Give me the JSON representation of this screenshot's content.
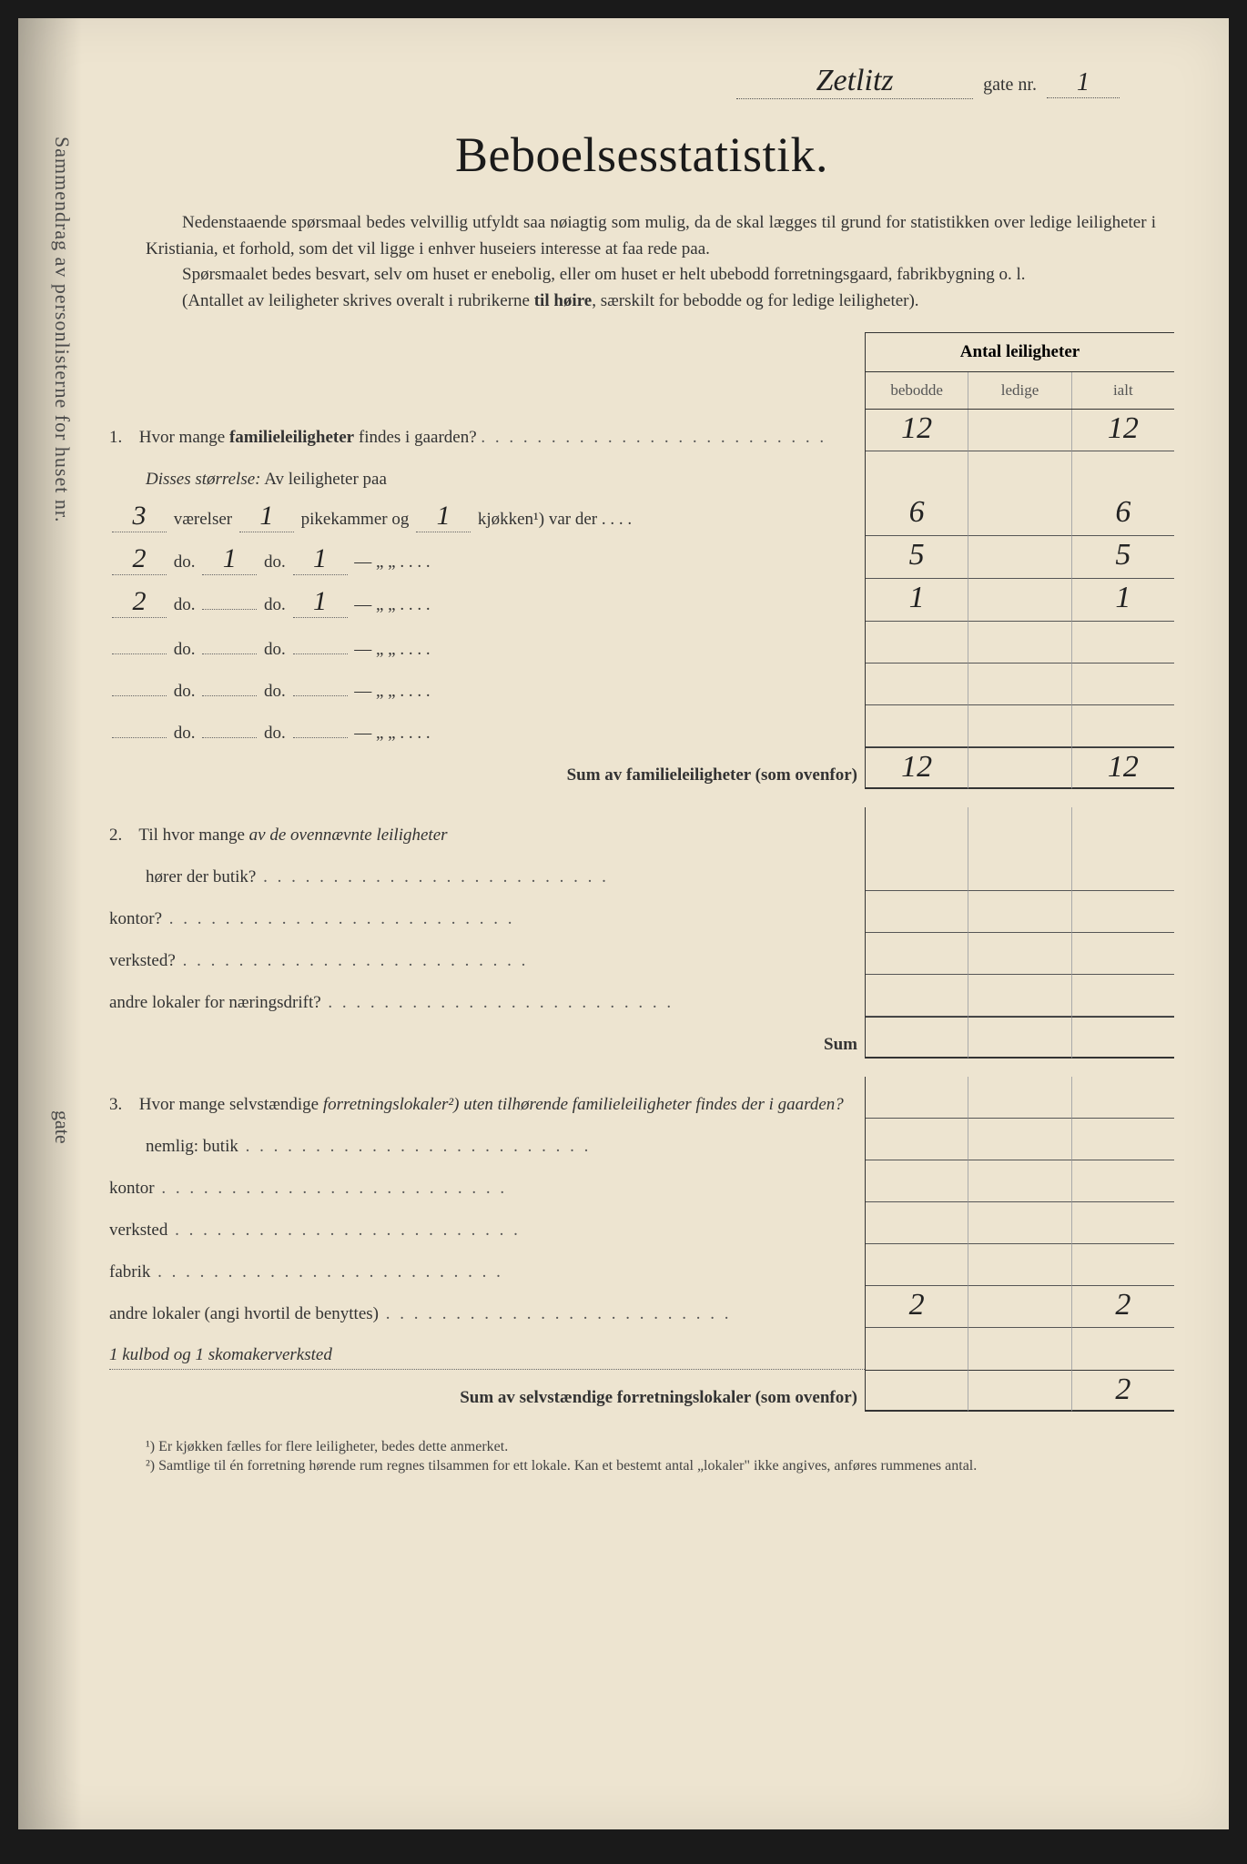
{
  "header": {
    "street_handwritten": "Zetlitz",
    "gate_label": "gate nr.",
    "number_handwritten": "1"
  },
  "title": "Beboelsesstatistik.",
  "intro": {
    "p1": "Nedenstaaende spørsmaal bedes velvillig utfyldt saa nøiagtig som mulig, da de skal lægges til grund for statistikken over ledige leiligheter i Kristiania, et forhold, som det vil ligge i enhver huseiers interesse at faa rede paa.",
    "p2": "Spørsmaalet bedes besvart, selv om huset er enebolig, eller om huset er helt ubebodd forretningsgaard, fabrikbygning o. l.",
    "p3_a": "(Antallet av leiligheter skrives overalt i rubrikerne ",
    "p3_b": "til høire",
    "p3_c": ", særskilt for bebodde og for ledige leiligheter)."
  },
  "cols": {
    "header": "Antal leiligheter",
    "c1": "bebodde",
    "c2": "ledige",
    "c3": "ialt"
  },
  "q1": {
    "label_a": "Hvor mange ",
    "label_b": "familieleiligheter",
    "label_c": " findes i gaarden?",
    "values": {
      "bebodde": "12",
      "ledige": "",
      "ialt": "12"
    },
    "disses": "Disses størrelse:",
    "av": " Av leiligheter paa",
    "rows": [
      {
        "vaer": "3",
        "vaer_lbl": "værelser",
        "pike": "1",
        "pike_lbl": "pikekammer og",
        "kjok": "1",
        "kjok_lbl": "kjøkken¹) var der",
        "bebodde": "6",
        "ledige": "",
        "ialt": "6"
      },
      {
        "vaer": "2",
        "vaer_lbl": "do.",
        "pike": "1",
        "pike_lbl": "do.",
        "kjok": "1",
        "kjok_lbl": "—        „    „",
        "bebodde": "5",
        "ledige": "",
        "ialt": "5"
      },
      {
        "vaer": "2",
        "vaer_lbl": "do.",
        "pike": "",
        "pike_lbl": "do.",
        "kjok": "1",
        "kjok_lbl": "—        „    „",
        "bebodde": "1",
        "ledige": "",
        "ialt": "1"
      },
      {
        "vaer": "",
        "vaer_lbl": "do.",
        "pike": "",
        "pike_lbl": "do.",
        "kjok": "",
        "kjok_lbl": "—        „    „",
        "bebodde": "",
        "ledige": "",
        "ialt": ""
      },
      {
        "vaer": "",
        "vaer_lbl": "do.",
        "pike": "",
        "pike_lbl": "do.",
        "kjok": "",
        "kjok_lbl": "—        „    „",
        "bebodde": "",
        "ledige": "",
        "ialt": ""
      },
      {
        "vaer": "",
        "vaer_lbl": "do.",
        "pike": "",
        "pike_lbl": "do.",
        "kjok": "",
        "kjok_lbl": "—        „    „",
        "bebodde": "",
        "ledige": "",
        "ialt": ""
      }
    ],
    "sum_label": "Sum av familieleiligheter (som ovenfor)",
    "sum": {
      "bebodde": "12",
      "ledige": "",
      "ialt": "12"
    }
  },
  "q2": {
    "label_a": "Til hvor mange ",
    "label_b": "av de ovennævnte leiligheter",
    "horer": "hører der butik?",
    "items": [
      "kontor?",
      "verksted?",
      "andre lokaler for næringsdrift?"
    ],
    "sum_label": "Sum"
  },
  "q3": {
    "label_a": "Hvor mange selvstændige ",
    "label_b": "forretningslokaler²)",
    "label_c": " uten tilhørende familie­leiligheter findes der i gaarden?",
    "nemlig": "nemlig: butik",
    "items": [
      "kontor",
      "verksted",
      "fabrik"
    ],
    "andre": "andre lokaler (angi hvortil de benyttes)",
    "andre_vals": {
      "bebodde": "2",
      "ledige": "",
      "ialt": "2"
    },
    "handwritten_line": "1 kulbod  og  1 skomakerverksted",
    "sum_label": "Sum av selvstændige forretningslokaler (som ovenfor)",
    "sum": {
      "bebodde": "",
      "ledige": "",
      "ialt": "2"
    }
  },
  "footnotes": {
    "f1": "¹) Er kjøkken fælles for flere leiligheter, bedes dette anmerket.",
    "f2": "²) Samtlige til én forretning hørende rum regnes tilsammen for ett lokale. Kan et bestemt antal „lokaler\" ikke angives, anføres rummenes antal."
  },
  "sidebar": {
    "text1": "Sammendrag av personlisterne for huset nr.",
    "text2": "gate"
  }
}
